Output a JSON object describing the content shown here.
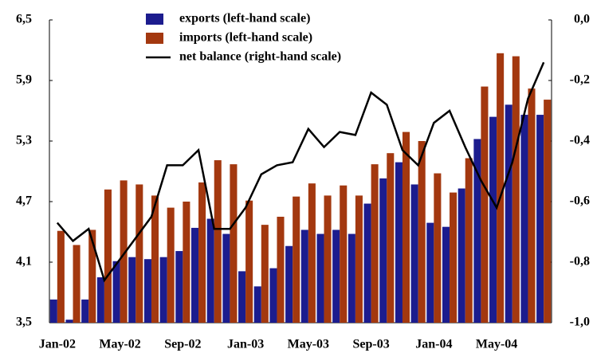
{
  "chart_data": {
    "type": "bar-line",
    "categories": [
      "Jan-02",
      null,
      null,
      null,
      "May-02",
      null,
      null,
      null,
      "Sep-02",
      null,
      null,
      null,
      "Jan-03",
      null,
      null,
      null,
      "May-03",
      null,
      null,
      null,
      "Sep-03",
      null,
      null,
      null,
      "Jan-04",
      null,
      null,
      null,
      "May-04",
      null,
      null,
      null
    ],
    "series": [
      {
        "name": "exports (left-hand scale)",
        "color": "#1c1c8e",
        "type": "bar",
        "values": [
          3.73,
          3.53,
          3.73,
          3.95,
          4.11,
          4.15,
          4.13,
          4.15,
          4.21,
          4.44,
          4.53,
          4.38,
          4.01,
          3.86,
          4.04,
          4.26,
          4.42,
          4.38,
          4.42,
          4.38,
          4.68,
          4.93,
          5.09,
          4.87,
          4.49,
          4.45,
          4.83,
          5.32,
          5.54,
          5.66,
          5.56,
          5.56
        ]
      },
      {
        "name": "imports (left-hand scale)",
        "color": "#a3380f",
        "type": "bar",
        "values": [
          4.41,
          4.27,
          4.42,
          4.82,
          4.91,
          4.87,
          4.76,
          4.64,
          4.7,
          4.89,
          5.11,
          5.07,
          4.71,
          4.47,
          4.55,
          4.75,
          4.88,
          4.76,
          4.86,
          4.76,
          5.07,
          5.18,
          5.39,
          5.3,
          4.98,
          4.79,
          5.13,
          5.84,
          6.17,
          6.14,
          5.82,
          5.71
        ]
      },
      {
        "name": "net balance (right-hand scale)",
        "color": "#000000",
        "type": "line",
        "axis": "y2",
        "values": [
          -0.67,
          -0.73,
          -0.69,
          -0.86,
          -0.79,
          -0.72,
          -0.65,
          -0.48,
          -0.48,
          -0.43,
          -0.69,
          -0.69,
          -0.62,
          -0.51,
          -0.48,
          -0.47,
          -0.36,
          -0.42,
          -0.37,
          -0.38,
          -0.24,
          -0.28,
          -0.43,
          -0.48,
          -0.34,
          -0.3,
          -0.42,
          -0.53,
          -0.62,
          -0.47,
          -0.26,
          -0.14
        ]
      }
    ],
    "ylim": [
      3.5,
      6.5
    ],
    "yticks": [
      {
        "value": 3.5,
        "label": "3,5"
      },
      {
        "value": 4.1,
        "label": "4,1"
      },
      {
        "value": 4.7,
        "label": "4,7"
      },
      {
        "value": 5.3,
        "label": "5,3"
      },
      {
        "value": 5.9,
        "label": "5,9"
      },
      {
        "value": 6.5,
        "label": "6,5"
      }
    ],
    "y2lim": [
      -1.0,
      0.0
    ],
    "y2ticks": [
      {
        "value": -1.0,
        "label": "-1,0"
      },
      {
        "value": -0.8,
        "label": "-0,8"
      },
      {
        "value": -0.6,
        "label": "-0,6"
      },
      {
        "value": -0.4,
        "label": "-0,4"
      },
      {
        "value": -0.2,
        "label": "-0,2"
      },
      {
        "value": 0.0,
        "label": "0,0"
      }
    ]
  }
}
